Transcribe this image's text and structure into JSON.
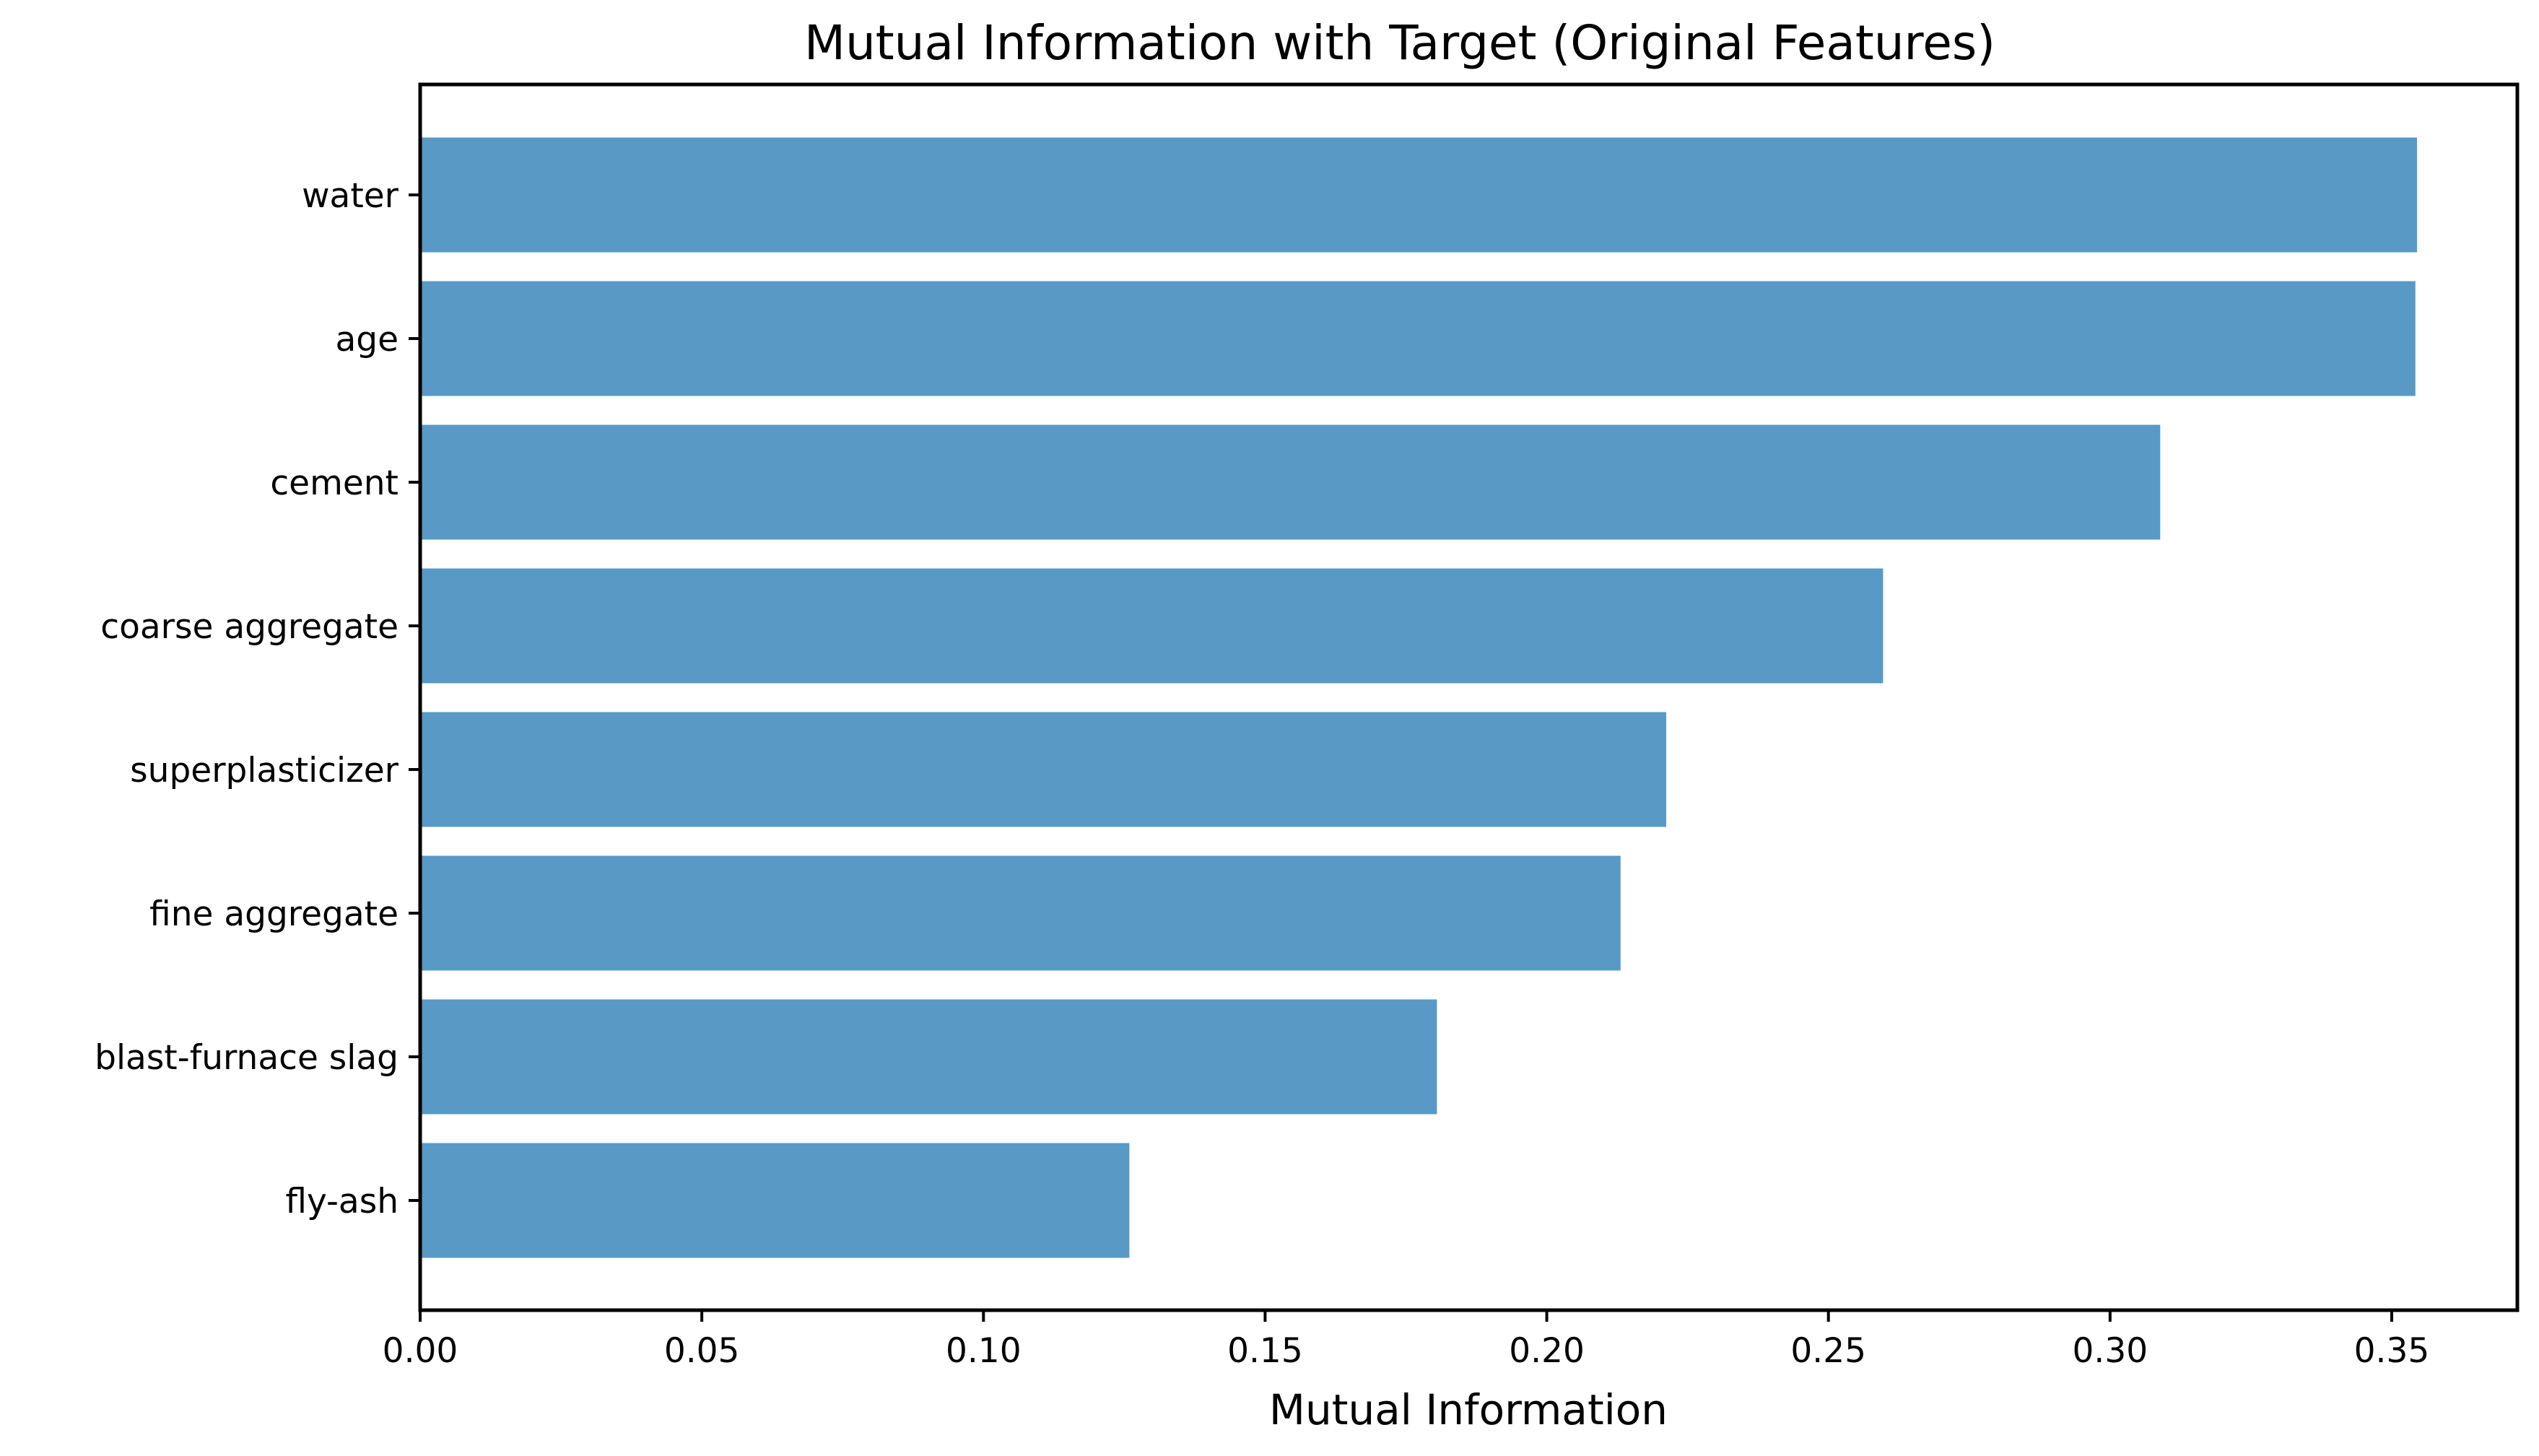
{
  "chart_data": {
    "type": "bar",
    "orientation": "horizontal",
    "title": "Mutual Information with Target (Original Features)",
    "xlabel": "Mutual Information",
    "ylabel": "",
    "categories": [
      "water",
      "age",
      "cement",
      "coarse aggregate",
      "superplasticizer",
      "fine aggregate",
      "blast-furnace slag",
      "fly-ash"
    ],
    "values": [
      0.3545,
      0.3542,
      0.3089,
      0.2597,
      0.2212,
      0.2131,
      0.1805,
      0.1259
    ],
    "xlim": [
      0,
      0.3723
    ],
    "xticks": [
      "0.00",
      "0.05",
      "0.10",
      "0.15",
      "0.20",
      "0.25",
      "0.30",
      "0.35"
    ],
    "bar_color": "#5899c6",
    "grid": false,
    "legend": "none"
  }
}
